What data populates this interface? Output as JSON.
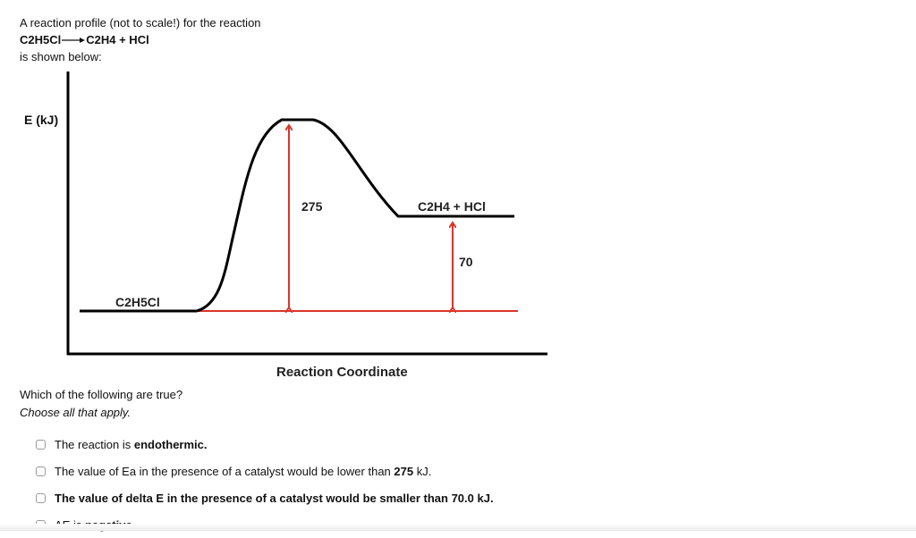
{
  "intro": {
    "line1": "A reaction profile (not to scale!) for the reaction",
    "reactant_formula": "C2H5Cl",
    "products_formula": "C2H4 + HCl",
    "line3": "is shown below:"
  },
  "diagram": {
    "y_axis_label": "E (kJ)",
    "x_axis_label": "Reaction Coordinate",
    "reactant_label": "C2H5Cl",
    "product_label": "C2H4 + HCl",
    "activation_energy_label": "275",
    "delta_e_label": "70",
    "activation_energy_kj": 275,
    "delta_e_kj": 70,
    "colors": {
      "curve": "#000000",
      "arrows": "#d9342b",
      "axes": "#000000"
    }
  },
  "question": {
    "prompt": "Which of the following are true?",
    "hint": "Choose all that apply."
  },
  "options": [
    {
      "pre": "The reaction is ",
      "bold": "endothermic.",
      "post": "",
      "all_bold": false,
      "checked": false
    },
    {
      "pre": "The value of Ea in the presence of a catalyst would be lower than ",
      "bold": "275",
      "post": " kJ.",
      "all_bold": false,
      "checked": false
    },
    {
      "pre": "",
      "bold": "The value of delta E in the presence of a catalyst would be smaller than 70.0 kJ.",
      "post": "",
      "all_bold": true,
      "checked": false
    },
    {
      "pre": "ΔE is ",
      "bold": "negative.",
      "post": "",
      "all_bold": false,
      "checked": false
    }
  ]
}
